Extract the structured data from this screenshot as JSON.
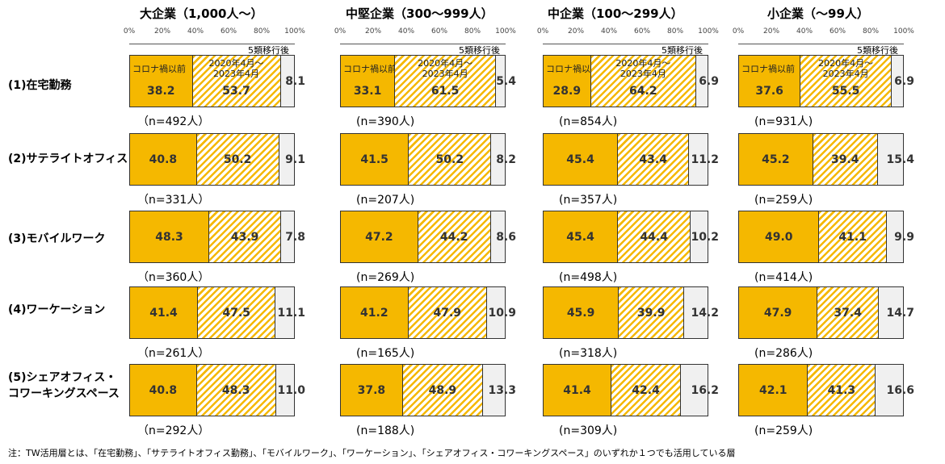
{
  "chart_data": {
    "type": "bar",
    "stacked": true,
    "orientation": "horizontal",
    "segment_labels": {
      "before": "コロナ禍以前",
      "during": "2020年4月～\n2023年4月",
      "after": "5類移行後"
    },
    "tick_labels": [
      "0%",
      "20%",
      "40%",
      "60%",
      "80%",
      "100%"
    ],
    "xlim": [
      0,
      100
    ],
    "colors": {
      "before": "#f5b800",
      "during_stripe": "#f5b800",
      "after": "#f0f0f0"
    },
    "categories": [
      "(1)在宅勤務",
      "(2)サテライトオフィス",
      "(3)モバイルワーク",
      "(4)ワーケーション",
      "(5)シェアオフィス・\nコワーキングスペース"
    ],
    "panels": [
      {
        "title": "大企業（1,000人～）",
        "rows": [
          {
            "before": 38.2,
            "during": 53.7,
            "after": 8.1,
            "n": "（n=492人）"
          },
          {
            "before": 40.8,
            "during": 50.2,
            "after": 9.1,
            "n": "（n=331人）"
          },
          {
            "before": 48.3,
            "during": 43.9,
            "after": 7.8,
            "n": "（n=360人）"
          },
          {
            "before": 41.4,
            "during": 47.5,
            "after": 11.1,
            "n": "（n=261人）"
          },
          {
            "before": 40.8,
            "during": 48.3,
            "after": 11.0,
            "n": "（n=292人）"
          }
        ]
      },
      {
        "title": "中堅企業（300～999人）",
        "rows": [
          {
            "before": 33.1,
            "during": 61.5,
            "after": 5.4,
            "n": "(n=390人)"
          },
          {
            "before": 41.5,
            "during": 50.2,
            "after": 8.2,
            "n": "(n=207人)"
          },
          {
            "before": 47.2,
            "during": 44.2,
            "after": 8.6,
            "n": "(n=269人)"
          },
          {
            "before": 41.2,
            "during": 47.9,
            "after": 10.9,
            "n": "(n=165人)"
          },
          {
            "before": 37.8,
            "during": 48.9,
            "after": 13.3,
            "n": "(n=188人)"
          }
        ]
      },
      {
        "title": "中企業（100～299人）",
        "rows": [
          {
            "before": 28.9,
            "during": 64.2,
            "after": 6.9,
            "n": "(n=854人)"
          },
          {
            "before": 45.4,
            "during": 43.4,
            "after": 11.2,
            "n": "(n=357人)"
          },
          {
            "before": 45.4,
            "during": 44.4,
            "after": 10.2,
            "n": "(n=498人)"
          },
          {
            "before": 45.9,
            "during": 39.9,
            "after": 14.2,
            "n": "(n=318人)"
          },
          {
            "before": 41.4,
            "during": 42.4,
            "after": 16.2,
            "n": "(n=309人)"
          }
        ]
      },
      {
        "title": "小企業（～99人）",
        "rows": [
          {
            "before": 37.6,
            "during": 55.5,
            "after": 6.9,
            "n": "(n=931人)"
          },
          {
            "before": 45.2,
            "during": 39.4,
            "after": 15.4,
            "n": "(n=259人)"
          },
          {
            "before": 49.0,
            "during": 41.1,
            "after": 9.9,
            "n": "(n=414人)"
          },
          {
            "before": 47.9,
            "during": 37.4,
            "after": 14.7,
            "n": "(n=286人)"
          },
          {
            "before": 42.1,
            "during": 41.3,
            "after": 16.6,
            "n": "(n=259人)"
          }
        ]
      }
    ],
    "footnote": "注：TW活用層とは、「在宅勤務」、「サテライトオフィス勤務」、「モバイルワーク」、「ワーケーション」、「シェアオフィス・コワーキングスペース」のいずれか１つでも活用している層"
  }
}
